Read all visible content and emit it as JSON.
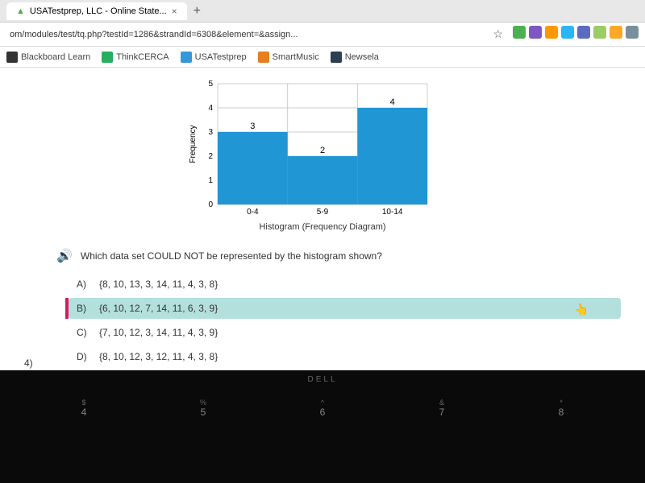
{
  "browser": {
    "tab_title": "USATestprep, LLC - Online State...",
    "url": "om/modules/test/tq.php?testId=1286&strandId=6308&element=&assign...",
    "bookmarks": [
      {
        "label": "Blackboard Learn",
        "icon_color": "#333"
      },
      {
        "label": "ThinkCERCA",
        "icon_color": "#27ae60"
      },
      {
        "label": "USATestprep",
        "icon_color": "#3498db"
      },
      {
        "label": "SmartMusic",
        "icon_color": "#e67e22"
      },
      {
        "label": "Newsela",
        "icon_color": "#2c3e50"
      }
    ],
    "ext_colors": [
      "#4caf50",
      "#7e57c2",
      "#ff9800",
      "#29b6f6",
      "#5c6bc0",
      "#9ccc65",
      "#ffa726",
      "#78909c"
    ]
  },
  "chart": {
    "type": "bar",
    "categories": [
      "0-4",
      "5-9",
      "10-14"
    ],
    "values": [
      3,
      2,
      4
    ],
    "bar_labels": [
      "3",
      "2",
      "4"
    ],
    "bar_color": "#2196d4",
    "grid_color": "#cccccc",
    "ylabel": "Frequency",
    "ylim": [
      0,
      5
    ],
    "yticks": [
      0,
      1,
      2,
      3,
      4,
      5
    ],
    "caption": "Histogram (Frequency Diagram)",
    "plot_bg": "#ffffff"
  },
  "question": {
    "text": "Which data set COULD NOT be represented by the histogram shown?",
    "answers": [
      {
        "label": "A)",
        "text": "{8, 10, 13, 3, 14, 11, 4, 3, 8}"
      },
      {
        "label": "B)",
        "text": "{6, 10, 12, 7, 14, 11, 6, 3, 9}"
      },
      {
        "label": "C)",
        "text": "{7, 10, 12, 3, 14, 11, 4, 3, 9}"
      },
      {
        "label": "D)",
        "text": "{8, 10, 12, 3, 12, 11, 4, 3, 8}"
      }
    ],
    "selected_index": 1
  },
  "nav": {
    "page": "4)"
  },
  "taskbar": {
    "brand": "DELL",
    "row1": [
      "$",
      "%",
      "^",
      "&",
      "*"
    ],
    "row2": [
      "4",
      "5",
      "6",
      "7",
      "8"
    ]
  }
}
